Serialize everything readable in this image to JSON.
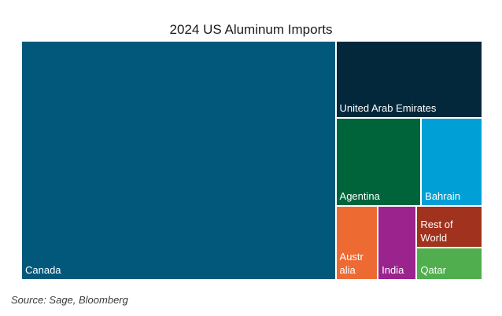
{
  "chart_data": {
    "type": "treemap",
    "title": "2024 US Aluminum Imports",
    "source": "Source: Sage, Bloomberg",
    "items": [
      {
        "label": "Canada",
        "value": 60.0,
        "color": "#02587b"
      },
      {
        "label": "United Arab Emirates",
        "value": 9.0,
        "color": "#03273b"
      },
      {
        "label": "Agentina",
        "value": 6.0,
        "color": "#00643b"
      },
      {
        "label": "Bahrain",
        "value": 4.3,
        "color": "#00a0d6"
      },
      {
        "label": "Austr\nalia",
        "value": 2.5,
        "color": "#ed6b33"
      },
      {
        "label": "India",
        "value": 2.3,
        "color": "#9b238e"
      },
      {
        "label": "Rest of\nWorld",
        "value": 2.2,
        "color": "#a1321d"
      },
      {
        "label": "Qatar",
        "value": 1.7,
        "color": "#50ae4f"
      }
    ]
  }
}
